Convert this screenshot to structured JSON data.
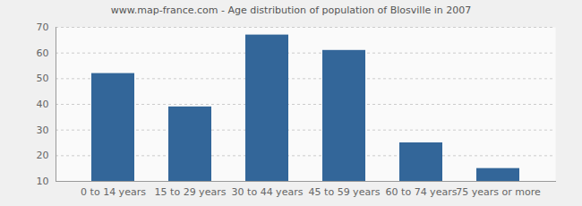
{
  "chart_data": {
    "type": "bar",
    "title": "www.map-france.com - Age distribution of population of Blosville in 2007",
    "categories": [
      "0 to 14 years",
      "15 to 29 years",
      "30 to 44 years",
      "45 to 59 years",
      "60 to 74 years",
      "75 years or more"
    ],
    "values": [
      52,
      39,
      67,
      61,
      25,
      15
    ],
    "color": "#336699",
    "ylim": [
      10,
      70
    ],
    "yticks": [
      10,
      20,
      30,
      40,
      50,
      60,
      70
    ],
    "grid": true
  }
}
